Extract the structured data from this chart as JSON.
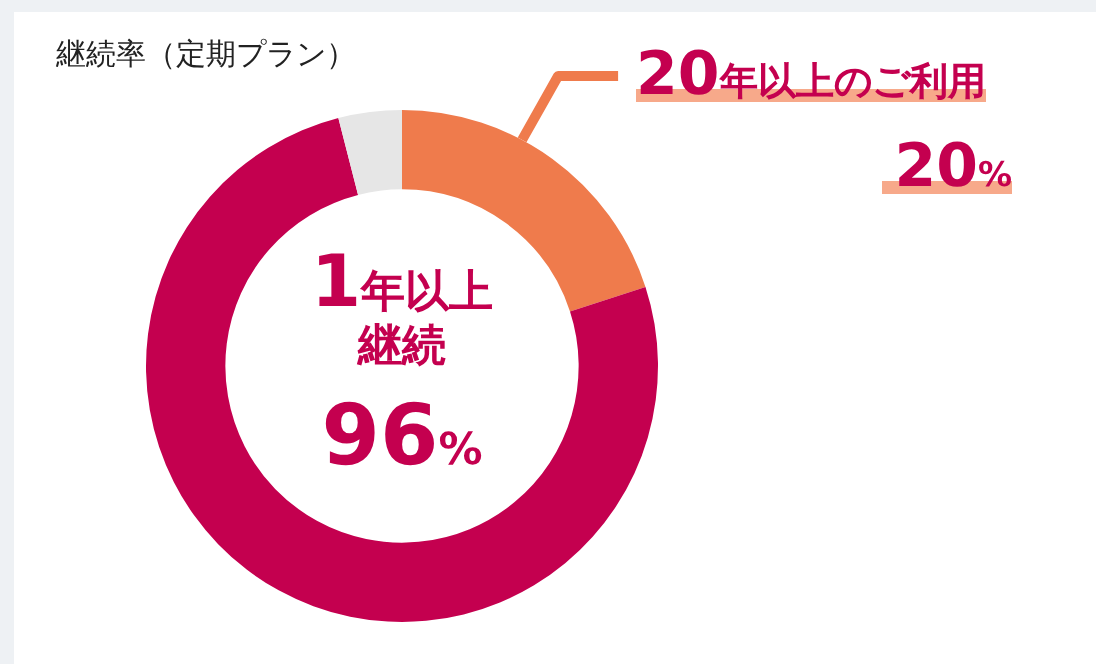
{
  "chart_data": {
    "type": "donut",
    "title": "継続率（定期プラン）",
    "categories": [
      "20年以上のご利用",
      null,
      null
    ],
    "values": [
      20,
      76,
      4
    ],
    "colors": [
      "#ef7b4c",
      "#c4004f",
      "#e6e6e6"
    ],
    "value_labels": [
      "20%",
      null,
      null
    ],
    "annotations": [
      "1年以上継続",
      "96%"
    ],
    "legend": false
  }
}
